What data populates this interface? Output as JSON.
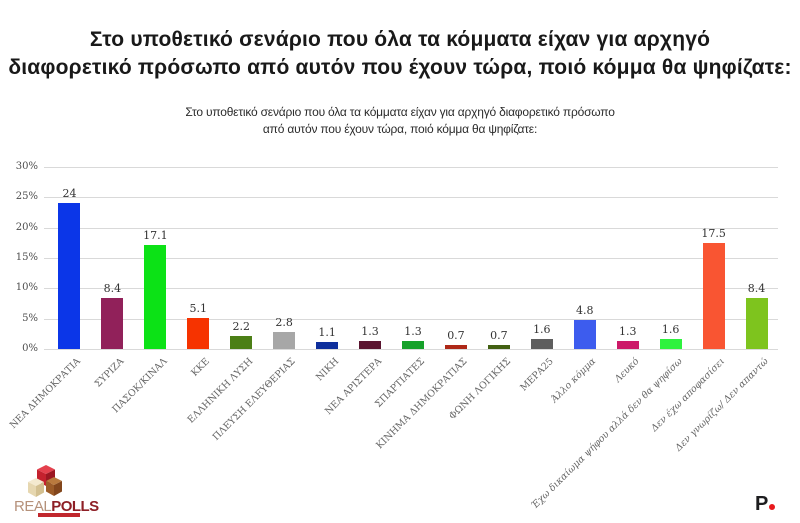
{
  "title": {
    "lines": [
      "Στο υποθετικό σενάριο που όλα τα κόμματα είχαν για αρχηγό",
      "διαφορετικό πρόσωπο από αυτόν που έχουν τώρα, ποιό κόμμα θα ψηφίζατε:"
    ]
  },
  "chart_data": {
    "type": "bar",
    "title_lines": [
      "Στο υποθετικό σενάριο που όλα τα κόμματα είχαν για αρχηγό διαφορετικό πρόσωπο",
      "από αυτόν που έχουν τώρα, ποιό κόμμα θα ψηφίζατε:"
    ],
    "categories": [
      "ΝΕΑ ΔΗΜΟΚΡΑΤΙΑ",
      "ΣΥΡΙΖΑ",
      "ΠΑΣΟΚ/ΚΙΝΑΛ",
      "ΚΚΕ",
      "ΕΛΛΗΝΙΚΗ ΛΥΣΗ",
      "ΠΛΕΥΣΗ ΕΛΕΥΘΕΡΙΑΣ",
      "ΝΙΚΗ",
      "ΝΕΑ ΑΡΙΣΤΕΡΑ",
      "ΣΠΑΡΤΙΑΤΕΣ",
      "ΚΙΝΗΜΑ ΔΗΜΟΚΡΑΤΙΑΣ",
      "ΦΩΝΗ ΛΟΓΙΚΗΣ",
      "ΜΕΡΑ25",
      "Άλλο κόμμα",
      "Λευκό",
      "Έχω δικαίωμα ψήφου αλλά δεν θα ψηφίσω",
      "Δεν έχω αποφασίσει",
      "Δεν γνωρίζω/ Δεν απαντώ"
    ],
    "values": [
      24,
      8.4,
      17.1,
      5.1,
      2.2,
      2.8,
      1.1,
      1.3,
      1.3,
      0.7,
      0.7,
      1.6,
      4.8,
      1.3,
      1.6,
      17.5,
      8.4
    ],
    "bar_colors": [
      "#0b36e8",
      "#91215a",
      "#0ce216",
      "#f63300",
      "#4c7f16",
      "#a7a7a7",
      "#0e2f9c",
      "#5a1530",
      "#16a12a",
      "#ae2817",
      "#426012",
      "#5e5e5e",
      "#3d5cee",
      "#cc1a68",
      "#2ef23e",
      "#f95532",
      "#7ec41e"
    ],
    "xlabel": "",
    "ylabel": "",
    "ylim": [
      0,
      30
    ],
    "ytick_step": 5,
    "ytick_labels": [
      "0%",
      "5%",
      "10%",
      "15%",
      "20%",
      "25%",
      "30%"
    ],
    "grid": true,
    "legend": "none"
  },
  "footer": {
    "realpolls": {
      "text_light": "REAL",
      "text_bold": "POLLS"
    },
    "p_logo": {
      "letter": "P"
    }
  },
  "colors": {
    "accent_red": "#e8191c",
    "grid_gray": "#d9d9d9",
    "logo_dark_red": "#8e1f26"
  }
}
